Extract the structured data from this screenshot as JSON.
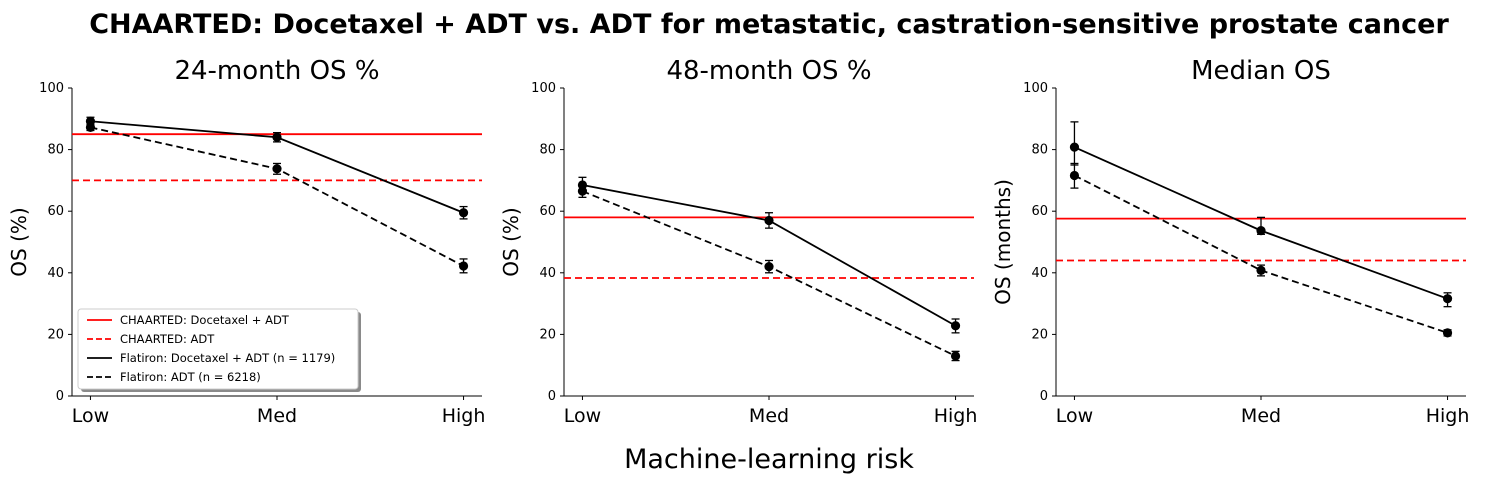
{
  "figure": {
    "suptitle": "CHAARTED: Docetaxel + ADT vs. ADT for metastatic, castration-sensitive prostate cancer",
    "xlabel": "Machine-learning risk"
  },
  "legend": {
    "placement": "lower-left",
    "entries": [
      {
        "label": "CHAARTED: Docetaxel + ADT",
        "color": "#ff0000",
        "dash": "solid"
      },
      {
        "label": "CHAARTED: ADT",
        "color": "#ff0000",
        "dash": "dashed"
      },
      {
        "label": "Flatiron: Docetaxel + ADT (n = 1179)",
        "color": "#000000",
        "dash": "solid"
      },
      {
        "label": "Flatiron: ADT (n = 6218)",
        "color": "#000000",
        "dash": "dashed"
      }
    ]
  },
  "colors": {
    "chaarted": "#ff0000",
    "flatiron": "#000000"
  },
  "chart_data": [
    {
      "type": "line",
      "title": "24-month OS %",
      "ylabel": "OS (%)",
      "categories": [
        "Low",
        "Med",
        "High"
      ],
      "ylim": [
        0,
        100
      ],
      "yticks": [
        0,
        20,
        40,
        60,
        80,
        100
      ],
      "grid": false,
      "reference_lines": [
        {
          "name": "CHAARTED: Docetaxel + ADT",
          "y": 85,
          "dash": "solid"
        },
        {
          "name": "CHAARTED: ADT",
          "y": 70,
          "dash": "dashed"
        }
      ],
      "series": [
        {
          "name": "Flatiron: Docetaxel + ADT (n = 1179)",
          "dash": "solid",
          "values": [
            89.2,
            84.0,
            59.5
          ],
          "lower": [
            87.5,
            82.5,
            57.5
          ],
          "upper": [
            90.5,
            85.5,
            61.5
          ]
        },
        {
          "name": "Flatiron: ADT (n = 6218)",
          "dash": "dashed",
          "values": [
            87.2,
            73.8,
            42.2
          ],
          "lower": [
            86.2,
            72.0,
            40.0
          ],
          "upper": [
            88.2,
            75.5,
            44.5
          ]
        }
      ]
    },
    {
      "type": "line",
      "title": "48-month OS %",
      "ylabel": "OS (%)",
      "categories": [
        "Low",
        "Med",
        "High"
      ],
      "ylim": [
        0,
        100
      ],
      "yticks": [
        0,
        20,
        40,
        60,
        80,
        100
      ],
      "grid": false,
      "reference_lines": [
        {
          "name": "CHAARTED: Docetaxel + ADT",
          "y": 58,
          "dash": "solid"
        },
        {
          "name": "CHAARTED: ADT",
          "y": 38.3,
          "dash": "dashed"
        }
      ],
      "series": [
        {
          "name": "Flatiron: Docetaxel + ADT (n = 1179)",
          "dash": "solid",
          "values": [
            68.5,
            57.0,
            22.8
          ],
          "lower": [
            66.0,
            54.5,
            20.5
          ],
          "upper": [
            71.0,
            59.5,
            25.0
          ]
        },
        {
          "name": "Flatiron: ADT (n = 6218)",
          "dash": "dashed",
          "values": [
            66.5,
            42.0,
            13.0
          ],
          "lower": [
            64.5,
            40.0,
            11.5
          ],
          "upper": [
            68.5,
            44.0,
            14.5
          ]
        }
      ]
    },
    {
      "type": "line",
      "title": "Median OS",
      "ylabel": "OS (months)",
      "categories": [
        "Low",
        "Med",
        "High"
      ],
      "ylim": [
        0,
        100
      ],
      "yticks": [
        0,
        20,
        40,
        60,
        80,
        100
      ],
      "grid": false,
      "reference_lines": [
        {
          "name": "CHAARTED: Docetaxel + ADT",
          "y": 57.6,
          "dash": "solid"
        },
        {
          "name": "CHAARTED: ADT",
          "y": 44.0,
          "dash": "dashed"
        }
      ],
      "series": [
        {
          "name": "Flatiron: Docetaxel + ADT (n = 1179)",
          "dash": "solid",
          "values": [
            80.8,
            53.7,
            31.6
          ],
          "lower": [
            75.0,
            52.5,
            29.0
          ],
          "upper": [
            89.0,
            58.0,
            33.5
          ]
        },
        {
          "name": "Flatiron: ADT (n = 6218)",
          "dash": "dashed",
          "values": [
            71.6,
            40.8,
            20.5
          ],
          "lower": [
            67.5,
            39.0,
            19.5
          ],
          "upper": [
            75.5,
            42.5,
            21.5
          ]
        }
      ]
    }
  ]
}
